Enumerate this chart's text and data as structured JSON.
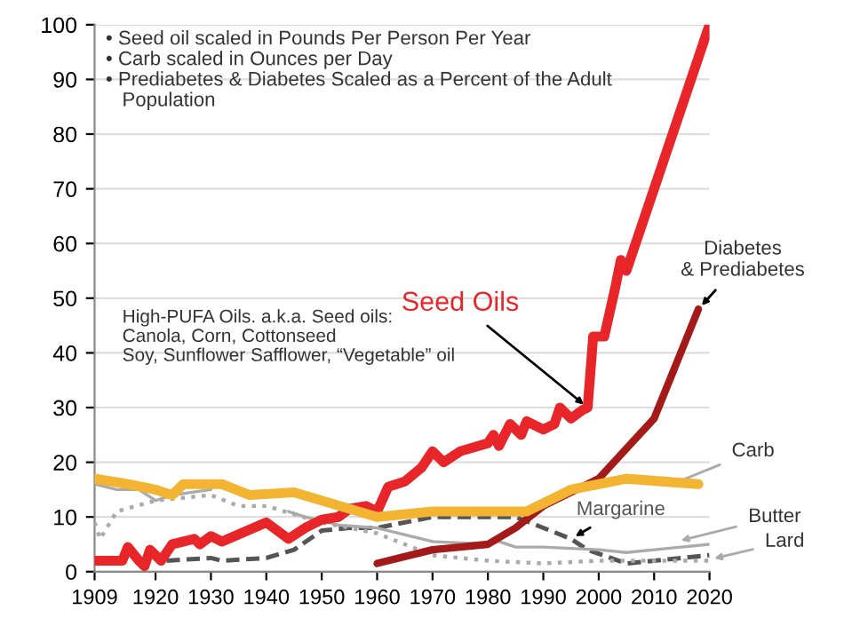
{
  "chart_data": {
    "type": "line",
    "xlim": [
      1909,
      2020
    ],
    "xticks": [
      1909,
      1920,
      1930,
      1940,
      1950,
      1960,
      1970,
      1980,
      1990,
      2000,
      2010,
      2020
    ],
    "ylim": [
      0,
      100
    ],
    "yticks": [
      0,
      10,
      20,
      30,
      40,
      50,
      60,
      70,
      80,
      90,
      100
    ],
    "grid": "y",
    "annotations": [
      "• Seed oil scaled in Pounds Per Person Per Year\n• Carb scaled in Ounces per Day\n• Prediabetes & Diabetes Scaled as a Percent of the Adult\n   Population",
      "High-PUFA Oils. a.k.a. Seed oils:\nCanola, Corn, Cottonseed\nSoy, Sunflower Safflower, “Vegetable” oil"
    ],
    "series": [
      {
        "name": "Seed Oils",
        "color": "#e8262a",
        "line_style": "solid",
        "x": [
          1909,
          1914,
          1915,
          1917,
          1918,
          1919,
          1920,
          1921,
          1923,
          1927,
          1928,
          1930,
          1932,
          1940,
          1944,
          1947,
          1950,
          1953,
          1955,
          1958,
          1960,
          1962,
          1965,
          1968,
          1970,
          1972,
          1975,
          1980,
          1981,
          1982,
          1984,
          1986,
          1987,
          1990,
          1992,
          1993,
          1995,
          1997,
          1998,
          1999,
          2001,
          2003,
          2004,
          2005,
          2006,
          2020
        ],
        "values": [
          2,
          2,
          4.5,
          2,
          1,
          4,
          3,
          2,
          5,
          6,
          5,
          6.5,
          5.5,
          9,
          6,
          8,
          9.5,
          10,
          11.5,
          12,
          11,
          15.5,
          16.5,
          19,
          22,
          20,
          22,
          23.5,
          25,
          23,
          27,
          25,
          27.5,
          26,
          27,
          30,
          28,
          29.5,
          30,
          43,
          43,
          52,
          57,
          55,
          58,
          100
        ]
      },
      {
        "name": "Diabetes\n& Prediabetes",
        "color": "#a31a18",
        "line_style": "solid",
        "x": [
          1960,
          1970,
          1980,
          1985,
          1990,
          2000,
          2010,
          2018
        ],
        "values": [
          1.5,
          4,
          5,
          8,
          12,
          17,
          28,
          48
        ]
      },
      {
        "name": "Carb",
        "color": "#f2b431",
        "line_style": "solid",
        "x": [
          1909,
          1915,
          1920,
          1923,
          1925,
          1932,
          1937,
          1945,
          1955,
          1960,
          1970,
          1980,
          1987,
          1995,
          2000,
          2005,
          2018
        ],
        "values": [
          17,
          16,
          15,
          14,
          16,
          16,
          14,
          14.5,
          11.5,
          10,
          11,
          11,
          11,
          15,
          16,
          17,
          16
        ]
      },
      {
        "name": "Margarine",
        "color": "#555555",
        "line_style": "dashed",
        "x": [
          1922,
          1930,
          1932,
          1940,
          1945,
          1950,
          1955,
          1960,
          1970,
          1985,
          1990,
          1995,
          1998,
          2005,
          2010,
          2020
        ],
        "values": [
          2,
          2.5,
          2,
          2.5,
          4,
          7.5,
          8,
          8,
          10,
          10,
          8,
          6,
          4,
          1.5,
          2,
          3
        ]
      },
      {
        "name": "Butter",
        "color": "#aaaaaa",
        "line_style": "solid",
        "x": [
          1909,
          1913,
          1917,
          1920,
          1923,
          1930,
          1940,
          1942,
          1944,
          1947,
          1953,
          1960,
          1970,
          1980,
          1982,
          1985,
          1990,
          2000,
          2005,
          2010,
          2020
        ],
        "values": [
          16,
          15,
          15,
          13,
          14,
          15,
          null,
          null,
          11,
          10,
          8.5,
          8,
          5.5,
          5,
          5.5,
          4.5,
          4.5,
          4,
          3.5,
          4,
          5
        ]
      },
      {
        "name": "Lard",
        "color": "#aaaaaa",
        "line_style": "dotted",
        "x": [
          1909,
          1910,
          1913,
          1920,
          1930,
          1935,
          1940,
          1950,
          1955,
          1960,
          1970,
          1980,
          1990,
          2000,
          2010,
          2020
        ],
        "values": [
          9,
          6,
          11,
          13,
          14,
          12,
          12,
          9,
          8,
          7,
          3,
          2,
          1.5,
          2,
          2,
          2
        ]
      }
    ]
  }
}
